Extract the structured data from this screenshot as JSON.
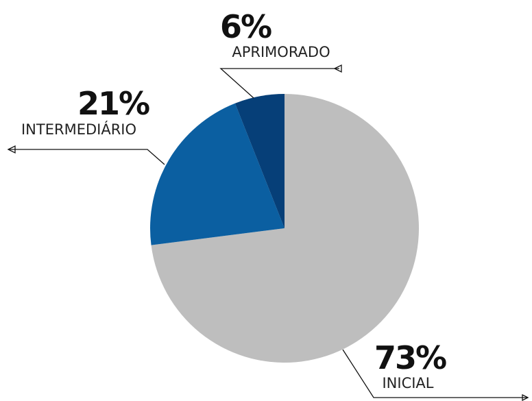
{
  "chart_data": {
    "type": "pie",
    "categories": [
      "INICIAL",
      "INTERMEDIÁRIO",
      "APRIMORADO"
    ],
    "values": [
      73,
      21,
      6
    ],
    "value_labels": [
      "73%",
      "21%",
      "6%"
    ],
    "colors": [
      "#bebebe",
      "#0b5fa1",
      "#063f78"
    ]
  }
}
